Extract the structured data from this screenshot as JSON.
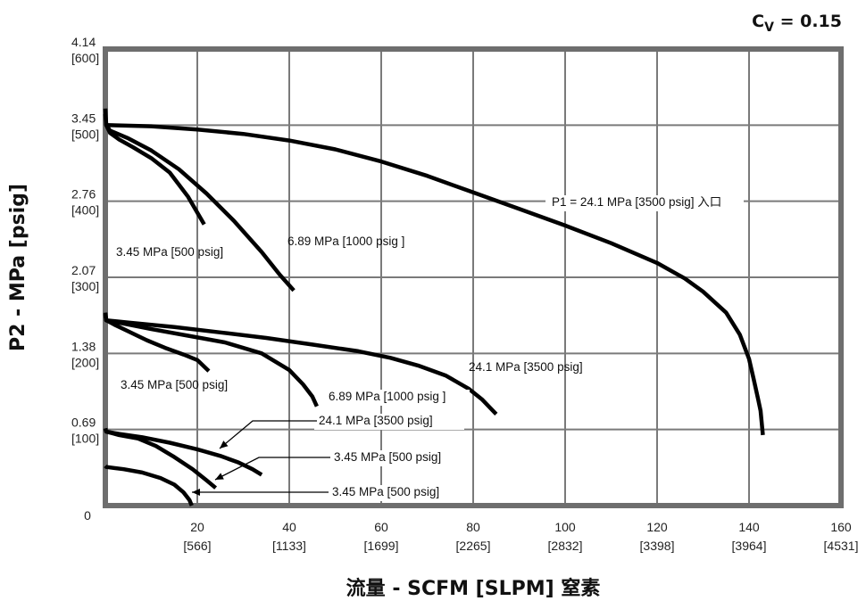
{
  "chart_data": {
    "type": "line",
    "cv_label": {
      "prefix": "C",
      "sub": "V",
      "rest": " = 0.15"
    },
    "xlabel": "流量 - SCFM [SLPM] 窒素",
    "ylabel": "P2 - MPa [psig]",
    "xlim": [
      0,
      160
    ],
    "ylim": [
      0,
      4.14
    ],
    "x_ticks": [
      {
        "x": 20,
        "top": "20",
        "bottom": "[566]"
      },
      {
        "x": 40,
        "top": "40",
        "bottom": "[1133]"
      },
      {
        "x": 60,
        "top": "60",
        "bottom": "[1699]"
      },
      {
        "x": 80,
        "top": "80",
        "bottom": "[2265]"
      },
      {
        "x": 100,
        "top": "100",
        "bottom": "[2832]"
      },
      {
        "x": 120,
        "top": "120",
        "bottom": "[3398]"
      },
      {
        "x": 140,
        "top": "140",
        "bottom": "[3964]"
      },
      {
        "x": 160,
        "top": "160",
        "bottom": "[4531]"
      }
    ],
    "x_zero_label": "0",
    "y_ticks": [
      {
        "y": 0.69,
        "top": "0.69",
        "bottom": "[100]"
      },
      {
        "y": 1.38,
        "top": "1.38",
        "bottom": "[200]"
      },
      {
        "y": 2.07,
        "top": "2.07",
        "bottom": "[300]"
      },
      {
        "y": 2.76,
        "top": "2.76",
        "bottom": "[400]"
      },
      {
        "y": 3.45,
        "top": "3.45",
        "bottom": "[500]"
      },
      {
        "y": 4.14,
        "top": "4.14",
        "bottom": "[600]"
      }
    ],
    "grid": true,
    "series": [
      {
        "name": "P1 =  24.1 MPa [3500 psig] 入口",
        "x": [
          0,
          10,
          20,
          30,
          40,
          50,
          60,
          70,
          80,
          90,
          100,
          110,
          120,
          126,
          130,
          135,
          138,
          140,
          141,
          142,
          142.5,
          143
        ],
        "y": [
          3.45,
          3.44,
          3.41,
          3.37,
          3.31,
          3.23,
          3.12,
          2.99,
          2.84,
          2.69,
          2.54,
          2.38,
          2.2,
          2.06,
          1.94,
          1.75,
          1.55,
          1.33,
          1.15,
          0.96,
          0.86,
          0.64
        ]
      },
      {
        "name": "3.45 MPa [500 psig]",
        "x": [
          0,
          0.2,
          1,
          3,
          6,
          10,
          14,
          18,
          21.5
        ],
        "y": [
          3.55,
          3.45,
          3.38,
          3.32,
          3.25,
          3.15,
          3.02,
          2.8,
          2.55
        ]
      },
      {
        "name": "6.89 MPa [1000 psig ]",
        "x": [
          0,
          0.2,
          1,
          5,
          10,
          16,
          22,
          28,
          34,
          38,
          41
        ],
        "y": [
          3.6,
          3.45,
          3.4,
          3.33,
          3.22,
          3.05,
          2.83,
          2.58,
          2.3,
          2.09,
          1.95
        ]
      },
      {
        "name": "24.1 MPa [3500 psig]",
        "x": [
          0,
          0.2,
          5,
          15,
          25,
          35,
          45,
          55,
          62,
          68,
          74,
          79,
          82,
          85
        ],
        "y": [
          1.75,
          1.68,
          1.66,
          1.62,
          1.57,
          1.52,
          1.46,
          1.4,
          1.34,
          1.27,
          1.18,
          1.06,
          0.96,
          0.83
        ]
      },
      {
        "name": "3.45 MPa [500 psig]",
        "x": [
          0,
          0.2,
          2,
          5,
          9,
          13,
          17,
          20,
          22.5
        ],
        "y": [
          1.73,
          1.68,
          1.64,
          1.58,
          1.5,
          1.43,
          1.37,
          1.32,
          1.22
        ]
      },
      {
        "name": "6.89 MPa [1000 psig ]",
        "x": [
          0,
          0.2,
          4,
          10,
          18,
          26,
          34,
          40,
          43,
          45,
          46
        ],
        "y": [
          1.74,
          1.68,
          1.65,
          1.6,
          1.54,
          1.48,
          1.38,
          1.23,
          1.1,
          0.99,
          0.9
        ]
      },
      {
        "name": "24.1 MPa [3500 psig]",
        "x": [
          0,
          0.2,
          3,
          8,
          14,
          20,
          25,
          29,
          32,
          34
        ],
        "y": [
          0.7,
          0.67,
          0.65,
          0.62,
          0.57,
          0.51,
          0.45,
          0.39,
          0.33,
          0.28
        ]
      },
      {
        "name": "3.45 MPa [500 psig]",
        "x": [
          0,
          0.2,
          3,
          7,
          11,
          15,
          19,
          22,
          24
        ],
        "y": [
          0.7,
          0.67,
          0.64,
          0.61,
          0.54,
          0.44,
          0.33,
          0.23,
          0.16
        ]
      },
      {
        "name": "3.45 MPa [500 psig]",
        "x": [
          0,
          0.2,
          4,
          8,
          12,
          15,
          17,
          18.3,
          18.8
        ],
        "y": [
          0.36,
          0.35,
          0.33,
          0.3,
          0.25,
          0.19,
          0.12,
          0.05,
          0.0
        ]
      }
    ],
    "annotations": [
      {
        "text": "P1 =  24.1 MPa [3500 psig] 入口"
      },
      {
        "text": "3.45 MPa [500 psig]"
      },
      {
        "text": "6.89 MPa [1000 psig ]"
      },
      {
        "text": "24.1 MPa [3500 psig]"
      },
      {
        "text": "3.45 MPa [500 psig]"
      },
      {
        "text": "6.89 MPa [1000 psig ]"
      },
      {
        "text": "24.1 MPa [3500 psig]"
      },
      {
        "text": "3.45 MPa [500 psig]"
      },
      {
        "text": "3.45 MPa [500 psig]"
      }
    ]
  }
}
